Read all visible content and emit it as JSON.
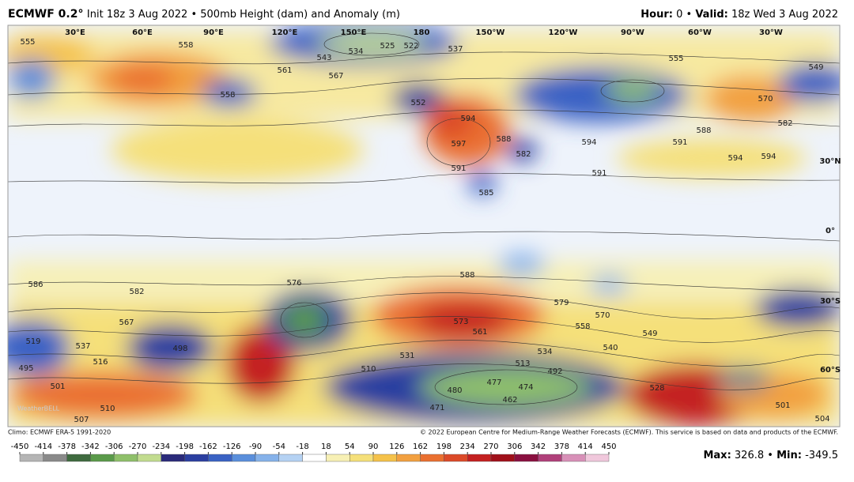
{
  "header": {
    "model": "ECMWF 0.2°",
    "description": "Init 18z 3 Aug 2022 • 500mb Height (dam) and Anomaly (m)",
    "hour_label": "Hour:",
    "hour": "0 •",
    "valid_label": "Valid:",
    "valid": "18z Wed 3 Aug 2022"
  },
  "map": {
    "longitudes": [
      "30°E",
      "60°E",
      "90°E",
      "120°E",
      "150°E",
      "180",
      "150°W",
      "120°W",
      "90°W",
      "60°W",
      "30°W"
    ],
    "latitudes": [
      "30°N",
      "0°",
      "30°S",
      "60°S"
    ],
    "contour_labels": [
      "555",
      "558",
      "567",
      "561",
      "558",
      "525",
      "522",
      "537",
      "534",
      "543",
      "552",
      "594",
      "597",
      "591",
      "588",
      "582",
      "585",
      "594",
      "591",
      "594",
      "594",
      "588",
      "582",
      "570",
      "555",
      "549",
      "586",
      "582",
      "576",
      "588",
      "579",
      "570",
      "558",
      "540",
      "549",
      "573",
      "561",
      "567",
      "537",
      "519",
      "498",
      "510",
      "513",
      "531",
      "534",
      "492",
      "477",
      "474",
      "462",
      "480",
      "471",
      "528",
      "516",
      "501",
      "507",
      "510",
      "504",
      "501",
      "495",
      "591"
    ],
    "watermark": "WeatherBELL"
  },
  "footer": {
    "climo": "Climo: ECMWF ERA-5 1991-2020",
    "copyright": "© 2022 European Centre for Medium-Range Weather Forecasts (ECMWF). This service is based on data and products of the ECMWF."
  },
  "colorbar": {
    "ticks": [
      -450,
      -414,
      -378,
      -342,
      -306,
      -270,
      -234,
      -198,
      -162,
      -126,
      -90,
      -54,
      -18,
      18,
      54,
      90,
      126,
      162,
      198,
      234,
      270,
      306,
      342,
      378,
      414,
      450
    ],
    "colors": [
      "#b5b5b5",
      "#8a8a8a",
      "#3f6b3f",
      "#5a9a4a",
      "#8fc06a",
      "#c2dc8f",
      "#2a2a7a",
      "#2b3fa0",
      "#3a62c4",
      "#5a8fdc",
      "#86b2ea",
      "#b5d2f3",
      "#ffffff",
      "#f7f0b5",
      "#f5e07a",
      "#f5c24a",
      "#f2a040",
      "#ea7030",
      "#dc4a28",
      "#c42020",
      "#a0101a",
      "#8a1040",
      "#b0407a",
      "#d890b8",
      "#f0c8dc"
    ]
  },
  "stats": {
    "max_label": "Max:",
    "max": 326.8,
    "sep": "•",
    "min_label": "Min:",
    "min": -349.5
  }
}
